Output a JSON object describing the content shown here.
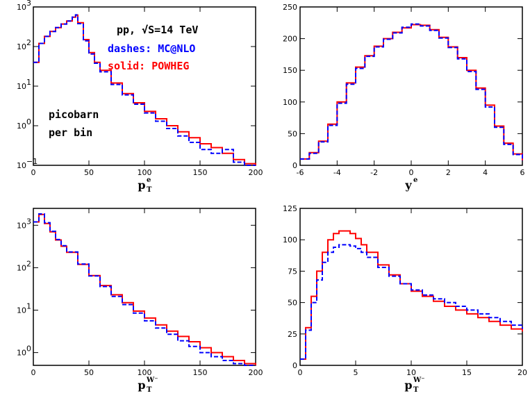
{
  "colors": {
    "powheg": "#ff0000",
    "mcatnlo": "#0000ff",
    "axis": "#000000"
  },
  "annotations": {
    "line1": "pp, √S=14 TeV",
    "line2": "dashes: MC@NLO",
    "line3": "solid: POWHEG",
    "units1": "picobarn",
    "units2": "per bin"
  },
  "chart_data": [
    {
      "id": "pt-electron",
      "type": "line",
      "xlabel": "p",
      "xlabel_sub": "T",
      "xlabel_sup": "e",
      "xlim": [
        0,
        200
      ],
      "ylim": [
        0.1,
        1000
      ],
      "yscale": "log",
      "x_ticks": [
        0,
        50,
        100,
        150,
        200
      ],
      "y_ticks": [
        {
          "v": 0.1,
          "b": "10",
          "e": "−1"
        },
        {
          "v": 1,
          "b": "10",
          "e": "0"
        },
        {
          "v": 10,
          "b": "10",
          "e": "1"
        },
        {
          "v": 100,
          "b": "10",
          "e": "2"
        },
        {
          "v": 1000,
          "b": "10",
          "e": "3"
        }
      ],
      "x": [
        0,
        5,
        10,
        15,
        20,
        25,
        30,
        35,
        38,
        40,
        45,
        50,
        55,
        60,
        70,
        80,
        90,
        100,
        110,
        120,
        130,
        140,
        150,
        160,
        170,
        180,
        190,
        200
      ],
      "series": [
        {
          "name": "POWHEG",
          "style": "solid",
          "values": [
            40,
            120,
            180,
            240,
            300,
            370,
            440,
            550,
            620,
            400,
            150,
            70,
            40,
            25,
            12,
            6.5,
            3.8,
            2.3,
            1.5,
            1.0,
            0.7,
            0.5,
            0.35,
            0.28,
            0.2,
            0.14,
            0.11,
            0.1
          ]
        },
        {
          "name": "MC@NLO",
          "style": "dashed",
          "values": [
            40,
            120,
            180,
            240,
            300,
            370,
            440,
            550,
            630,
            380,
            140,
            65,
            38,
            23,
            11,
            6,
            3.5,
            2.1,
            1.3,
            0.85,
            0.55,
            0.38,
            0.25,
            0.2,
            0.25,
            0.12,
            0.1,
            0.1
          ]
        }
      ]
    },
    {
      "id": "y-electron",
      "type": "line",
      "xlabel": "y",
      "xlabel_sup": "e",
      "xlim": [
        -6,
        6
      ],
      "ylim": [
        0,
        250
      ],
      "yscale": "linear",
      "x_ticks": [
        -6,
        -4,
        -2,
        0,
        2,
        4,
        6
      ],
      "y_ticks": [
        0,
        50,
        100,
        150,
        200,
        250
      ],
      "x": [
        -6,
        -5.5,
        -5,
        -4.5,
        -4,
        -3.5,
        -3,
        -2.5,
        -2,
        -1.5,
        -1,
        -0.5,
        0,
        0.5,
        1,
        1.5,
        2,
        2.5,
        3,
        3.5,
        4,
        4.5,
        5,
        5.5,
        6
      ],
      "series": [
        {
          "name": "POWHEG",
          "style": "solid",
          "values": [
            10,
            20,
            38,
            65,
            100,
            130,
            155,
            173,
            188,
            200,
            210,
            217,
            222,
            221,
            214,
            202,
            187,
            170,
            150,
            122,
            95,
            62,
            35,
            18,
            8
          ]
        },
        {
          "name": "MC@NLO",
          "style": "dashed",
          "values": [
            10,
            19,
            37,
            63,
            98,
            128,
            153,
            172,
            187,
            199,
            209,
            218,
            223,
            220,
            213,
            201,
            186,
            168,
            148,
            120,
            92,
            60,
            33,
            17,
            7
          ]
        }
      ]
    },
    {
      "id": "pt-w",
      "type": "line",
      "xlabel": "p",
      "xlabel_sub": "T",
      "xlabel_sup": "W⁻",
      "xlim": [
        0,
        200
      ],
      "ylim": [
        0.5,
        2500
      ],
      "yscale": "log",
      "x_ticks": [
        0,
        50,
        100,
        150,
        200
      ],
      "y_ticks": [
        {
          "v": 1,
          "b": "10",
          "e": "0"
        },
        {
          "v": 10,
          "b": "10",
          "e": "1"
        },
        {
          "v": 100,
          "b": "10",
          "e": "2"
        },
        {
          "v": 1000,
          "b": "10",
          "e": "3"
        }
      ],
      "x": [
        0,
        5,
        10,
        15,
        20,
        25,
        30,
        40,
        50,
        60,
        70,
        80,
        90,
        100,
        110,
        120,
        130,
        140,
        150,
        160,
        170,
        180,
        190,
        200
      ],
      "series": [
        {
          "name": "POWHEG",
          "style": "solid",
          "values": [
            1200,
            1800,
            1100,
            700,
            450,
            320,
            230,
            120,
            65,
            38,
            23,
            15,
            9.5,
            6.5,
            4.5,
            3.2,
            2.4,
            1.8,
            1.3,
            1.0,
            0.8,
            0.65,
            0.55,
            0.5
          ]
        },
        {
          "name": "MC@NLO",
          "style": "dashed",
          "values": [
            1200,
            1850,
            1150,
            720,
            460,
            330,
            235,
            122,
            64,
            36,
            21,
            13.5,
            8.5,
            5.6,
            3.8,
            2.7,
            1.9,
            1.4,
            1.0,
            0.8,
            0.65,
            0.55,
            0.5,
            0.5
          ]
        }
      ]
    },
    {
      "id": "pt-w-low",
      "type": "line",
      "xlabel": "p",
      "xlabel_sub": "T",
      "xlabel_sup": "W⁻",
      "xlim": [
        0,
        20
      ],
      "ylim": [
        0,
        125
      ],
      "yscale": "linear",
      "x_ticks": [
        0,
        5,
        10,
        15,
        20
      ],
      "y_ticks": [
        0,
        25,
        50,
        75,
        100,
        125
      ],
      "x": [
        0,
        0.5,
        1,
        1.5,
        2,
        2.5,
        3,
        3.5,
        4,
        4.5,
        5,
        5.5,
        6,
        7,
        8,
        9,
        10,
        11,
        12,
        13,
        14,
        15,
        16,
        17,
        18,
        19,
        20
      ],
      "series": [
        {
          "name": "POWHEG",
          "style": "solid",
          "values": [
            5,
            30,
            55,
            75,
            90,
            100,
            105,
            107,
            107,
            105,
            101,
            96,
            90,
            80,
            72,
            65,
            59,
            55,
            51,
            47,
            44,
            41,
            38,
            35,
            32,
            29,
            27
          ]
        },
        {
          "name": "MC@NLO",
          "style": "dashed",
          "values": [
            5,
            28,
            50,
            68,
            82,
            90,
            94,
            96,
            96,
            95,
            93,
            90,
            86,
            78,
            71,
            65,
            60,
            56,
            53,
            50,
            47,
            44,
            41,
            38,
            35,
            32,
            29
          ]
        }
      ]
    }
  ]
}
